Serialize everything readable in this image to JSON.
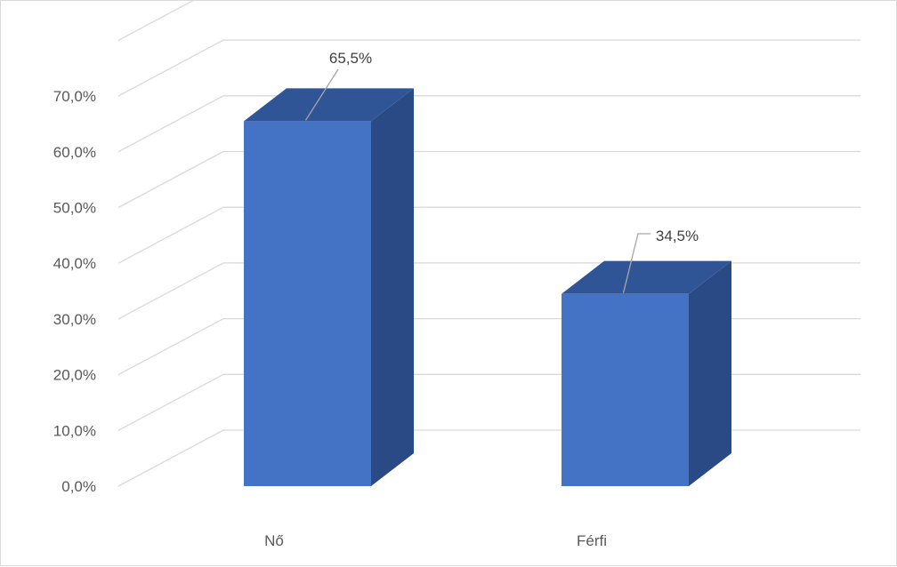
{
  "chart_data": {
    "type": "bar",
    "three_d": true,
    "categories": [
      "Nő",
      "Férfi"
    ],
    "values": [
      65.5,
      34.5
    ],
    "data_labels": [
      "65,5%",
      "34,5%"
    ],
    "y_tick_labels": [
      "0,0%",
      "10,0%",
      "20,0%",
      "30,0%",
      "40,0%",
      "50,0%",
      "60,0%",
      "70,0%"
    ],
    "ylim": [
      0,
      80
    ],
    "grid": true,
    "legend": "none",
    "colors": {
      "bar_front": "#4472c4",
      "bar_top": "#2f5597",
      "bar_side": "#2a4a85",
      "gridline": "#d9d9d9",
      "leader_line": "#a6a6a6"
    }
  }
}
